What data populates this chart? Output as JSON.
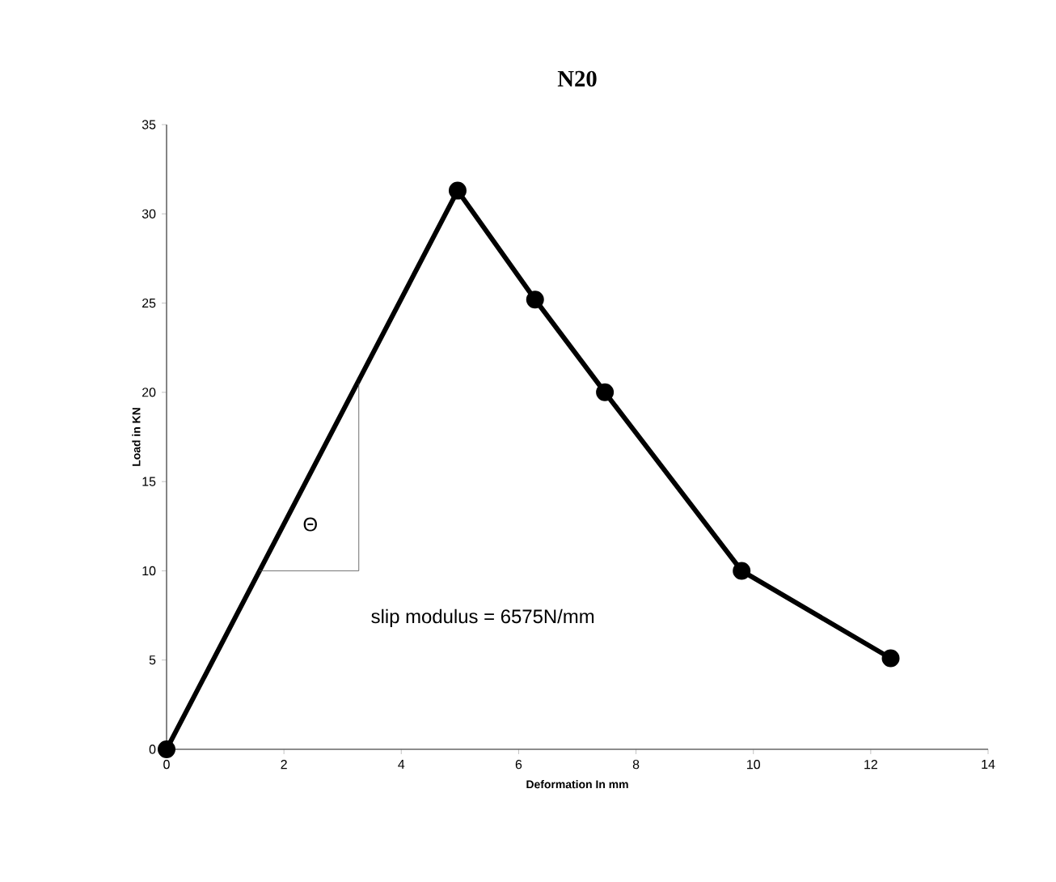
{
  "chart_data": {
    "type": "line",
    "title": "N20",
    "xlabel": "Deformation In mm",
    "ylabel": "Load in KN",
    "x": [
      0,
      4.96,
      6.28,
      7.47,
      9.8,
      12.34
    ],
    "values": [
      0,
      31.3,
      25.2,
      20.0,
      10.0,
      5.1
    ],
    "color": "#000000",
    "marker": "circle",
    "line_style": "solid",
    "grid": false,
    "xlim": [
      0,
      14
    ],
    "xticks": [
      0,
      2,
      4,
      6,
      8,
      10,
      12,
      14
    ],
    "ylim": [
      0,
      35
    ],
    "yticks": [
      0,
      5,
      10,
      15,
      20,
      25,
      30,
      35
    ],
    "annotations": [
      "slip modulus = 6575N/mm",
      "Θ"
    ]
  }
}
